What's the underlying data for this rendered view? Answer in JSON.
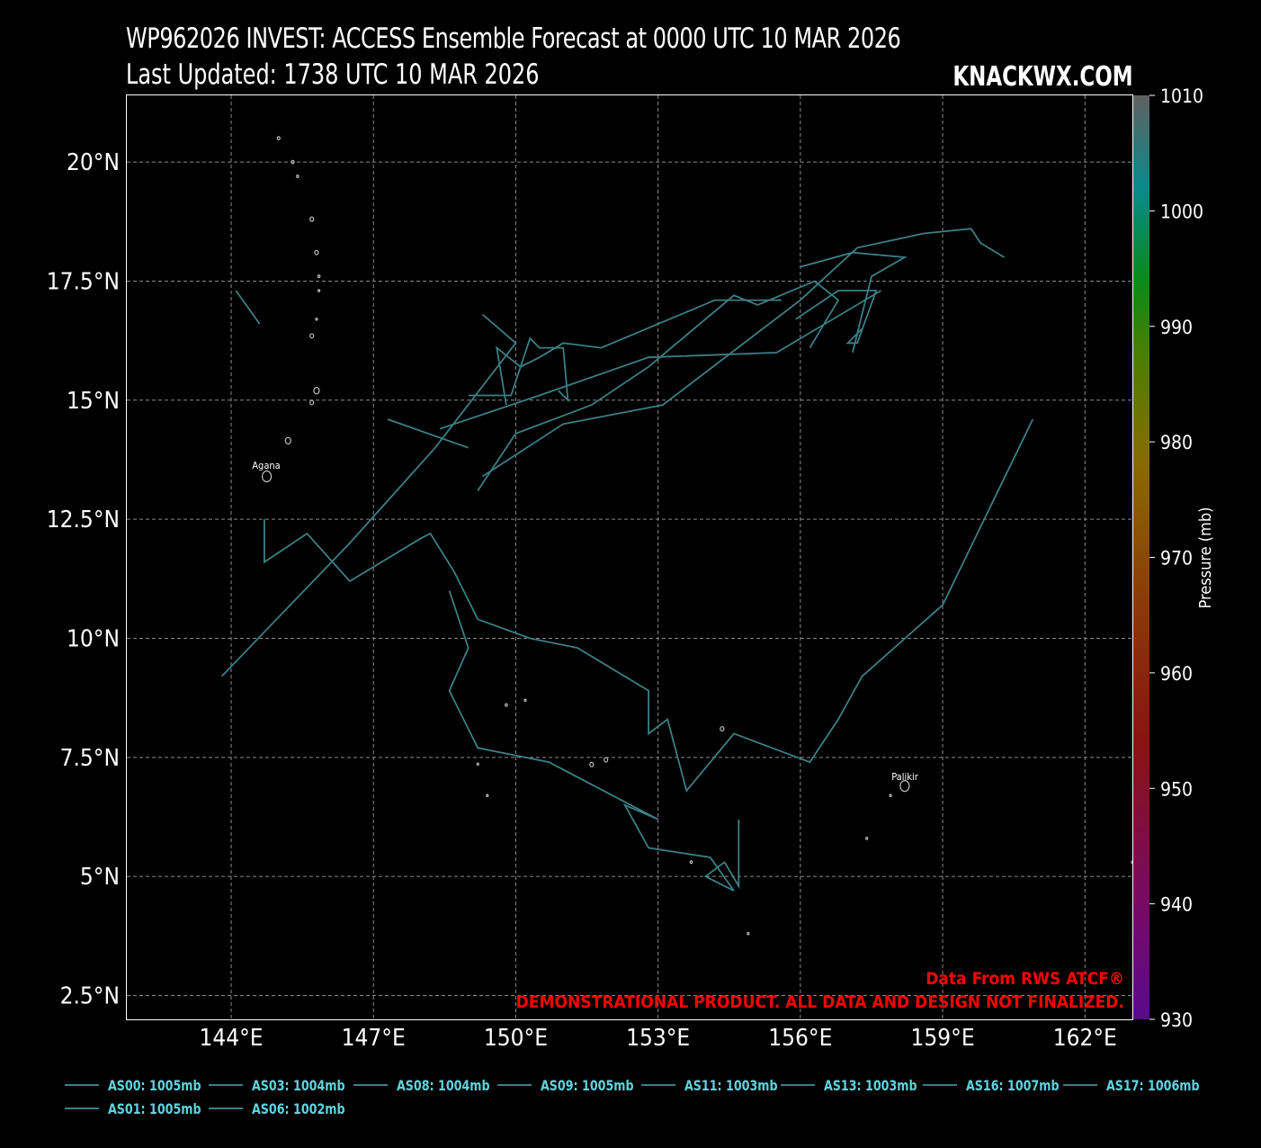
{
  "header": {
    "title_line1": "WP962026 INVEST: ACCESS Ensemble Forecast at 0000 UTC 10 MAR 2026",
    "title_line2": "Last Updated: 1738 UTC 10 MAR 2026",
    "brand": "KNACKWX.COM"
  },
  "map": {
    "lon_range": [
      141.8,
      163.0
    ],
    "lat_range": [
      2.0,
      21.4
    ],
    "lon_ticks": [
      "144°E",
      "147°E",
      "150°E",
      "153°E",
      "156°E",
      "159°E",
      "162°E"
    ],
    "lat_ticks": [
      "2.5°N",
      "5°N",
      "7.5°N",
      "10°N",
      "12.5°N",
      "15°N",
      "17.5°N",
      "20°N"
    ],
    "grid": true,
    "place_labels": [
      {
        "name": "Agana",
        "lon": 144.75,
        "lat": 13.47
      },
      {
        "name": "Palikir",
        "lon": 158.16,
        "lat": 6.92
      }
    ],
    "credit_line1": "Data From RWS ATCF®",
    "credit_line2": "DEMONSTRATIONAL PRODUCT. ALL DATA AND DESIGN NOT FINALIZED."
  },
  "colorbar": {
    "label": "Pressure (mb)",
    "min": 930,
    "max": 1010,
    "ticks": [
      "1010",
      "1000",
      "990",
      "980",
      "970",
      "960",
      "950",
      "940",
      "930"
    ]
  },
  "colors": {
    "track": "#3c7f86",
    "legend_text": "#5fd3df",
    "credit": "#ff0000",
    "grid": "#8a8a8a"
  },
  "legend": [
    {
      "label": "AS00: 1005mb"
    },
    {
      "label": "AS03: 1004mb"
    },
    {
      "label": "AS08: 1004mb"
    },
    {
      "label": "AS09: 1005mb"
    },
    {
      "label": "AS11: 1003mb"
    },
    {
      "label": "AS13: 1003mb"
    },
    {
      "label": "AS16: 1007mb"
    },
    {
      "label": "AS17: 1006mb"
    },
    {
      "label": "AS01: 1005mb"
    },
    {
      "label": "AS06: 1002mb"
    }
  ],
  "tracks": [
    {
      "points": [
        [
          143.8,
          9.2
        ],
        [
          146.5,
          12.0
        ],
        [
          148.3,
          14.0
        ],
        [
          150.0,
          16.2
        ],
        [
          149.3,
          16.8
        ]
      ]
    },
    {
      "points": [
        [
          148.4,
          14.4
        ],
        [
          150.5,
          15.1
        ],
        [
          152.8,
          15.9
        ],
        [
          155.5,
          16.0
        ],
        [
          157.7,
          17.3
        ]
      ]
    },
    {
      "points": [
        [
          144.1,
          17.3
        ],
        [
          144.6,
          16.6
        ]
      ]
    },
    {
      "points": [
        [
          149.2,
          13.1
        ],
        [
          150.0,
          14.3
        ],
        [
          151.6,
          14.9
        ],
        [
          152.8,
          15.7
        ],
        [
          154.6,
          17.2
        ],
        [
          155.1,
          17.0
        ],
        [
          156.3,
          17.5
        ],
        [
          156.8,
          17.1
        ],
        [
          156.2,
          16.1
        ]
      ]
    },
    {
      "points": [
        [
          144.7,
          12.5
        ],
        [
          144.7,
          11.6
        ],
        [
          145.6,
          12.2
        ],
        [
          146.5,
          11.2
        ],
        [
          148.0,
          12.1
        ],
        [
          148.2,
          12.2
        ],
        [
          148.7,
          11.4
        ],
        [
          149.2,
          10.4
        ],
        [
          150.3,
          10.0
        ],
        [
          151.3,
          9.8
        ],
        [
          152.8,
          8.9
        ],
        [
          152.8,
          8.0
        ],
        [
          153.2,
          8.3
        ],
        [
          153.6,
          6.8
        ],
        [
          154.6,
          8.0
        ],
        [
          156.2,
          7.4
        ],
        [
          156.8,
          8.3
        ],
        [
          157.3,
          9.2
        ],
        [
          159.0,
          10.7
        ],
        [
          160.9,
          14.6
        ]
      ]
    },
    {
      "points": [
        [
          148.6,
          11.0
        ],
        [
          149.0,
          9.8
        ],
        [
          148.6,
          8.9
        ],
        [
          149.2,
          7.7
        ],
        [
          150.7,
          7.4
        ],
        [
          153.0,
          6.2
        ],
        [
          152.3,
          6.5
        ],
        [
          152.8,
          5.6
        ],
        [
          154.1,
          5.4
        ],
        [
          154.6,
          4.7
        ],
        [
          154.0,
          5.0
        ],
        [
          154.4,
          5.3
        ],
        [
          154.7,
          4.8
        ],
        [
          154.7,
          6.2
        ]
      ]
    },
    {
      "points": [
        [
          147.3,
          14.6
        ],
        [
          149.0,
          14.0
        ]
      ]
    },
    {
      "points": [
        [
          149.3,
          13.4
        ],
        [
          151.0,
          14.5
        ],
        [
          153.1,
          14.9
        ],
        [
          156.0,
          17.1
        ],
        [
          157.2,
          18.2
        ],
        [
          158.6,
          18.5
        ],
        [
          159.6,
          18.6
        ],
        [
          159.8,
          18.3
        ],
        [
          160.3,
          18.0
        ]
      ]
    },
    {
      "points": [
        [
          149.8,
          14.9
        ],
        [
          149.6,
          16.1
        ],
        [
          150.1,
          15.7
        ],
        [
          150.5,
          15.9
        ],
        [
          151.0,
          16.2
        ],
        [
          151.8,
          16.1
        ],
        [
          153.0,
          16.6
        ],
        [
          154.2,
          17.1
        ],
        [
          155.6,
          17.1
        ]
      ]
    },
    {
      "points": [
        [
          149.0,
          15.1
        ],
        [
          149.9,
          15.1
        ],
        [
          150.3,
          16.3
        ],
        [
          150.5,
          16.1
        ],
        [
          151.0,
          16.1
        ],
        [
          151.1,
          15.0
        ],
        [
          150.9,
          15.2
        ]
      ]
    },
    {
      "points": [
        [
          155.9,
          16.7
        ],
        [
          156.8,
          17.3
        ],
        [
          157.6,
          17.3
        ],
        [
          157.2,
          16.2
        ],
        [
          157.0,
          16.2
        ],
        [
          157.3,
          16.5
        ]
      ]
    },
    {
      "points": [
        [
          156.0,
          17.8
        ],
        [
          157.1,
          18.1
        ],
        [
          158.2,
          18.0
        ],
        [
          157.5,
          17.6
        ],
        [
          157.3,
          16.8
        ],
        [
          157.1,
          16.0
        ]
      ]
    }
  ]
}
